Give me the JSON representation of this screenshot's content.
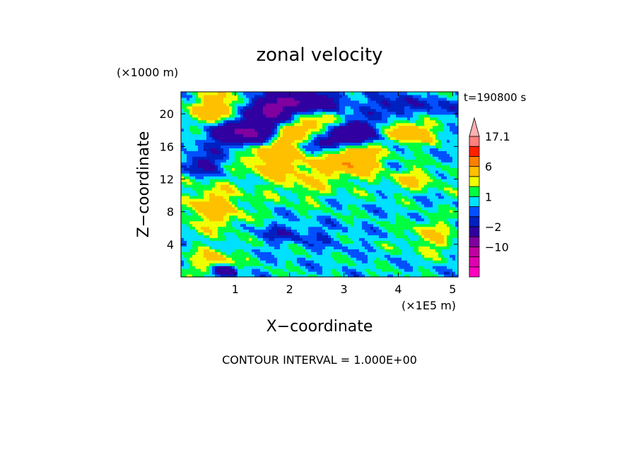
{
  "chart_data": {
    "type": "heatmap",
    "title": "zonal velocity",
    "xlabel": "X−coordinate",
    "ylabel": "Z−coordinate",
    "x_unit": "(×1E5 m)",
    "y_unit": "(×1000 m)",
    "time_label": "t=190800 s",
    "footer": "CONTOUR INTERVAL = 1.000E+00",
    "xlim": [
      0,
      5.1
    ],
    "ylim": [
      0,
      22.7
    ],
    "x_ticks": [
      "1",
      "2",
      "3",
      "4",
      "5"
    ],
    "y_ticks": [
      "4",
      "8",
      "12",
      "16",
      "20"
    ],
    "colorbar": {
      "labels": [
        "17.1",
        "6",
        "1",
        "−2",
        "−10"
      ],
      "levels": [
        -18,
        -14,
        -10,
        -6,
        -2,
        -1,
        0,
        1,
        2,
        3,
        6,
        10,
        14,
        17.1
      ],
      "colors": [
        "#ff00c0",
        "#e000b0",
        "#c000a0",
        "#8000a0",
        "#3000a0",
        "#0020c0",
        "#0050ff",
        "#00e0ff",
        "#00ff40",
        "#f0ff00",
        "#ffc000",
        "#ff8000",
        "#ff2000",
        "#ff8080",
        "#ffb0b0"
      ]
    },
    "background_value": 0.5,
    "features": [
      {
        "x": 0.7,
        "z": 20.5,
        "value": 5,
        "sx": 0.35,
        "sz": 1.5
      },
      {
        "x": 1.6,
        "z": 20.5,
        "value": -6,
        "sx": 0.35,
        "sz": 1.2
      },
      {
        "x": 2.3,
        "z": 21.5,
        "value": -6,
        "sx": 0.45,
        "sz": 1.0
      },
      {
        "x": 1.2,
        "z": 17.8,
        "value": -8,
        "sx": 0.45,
        "sz": 1.2
      },
      {
        "x": 1.9,
        "z": 17.5,
        "value": 4,
        "sx": 0.25,
        "sz": 1.2
      },
      {
        "x": 2.5,
        "z": 18.5,
        "value": 5,
        "sx": 0.3,
        "sz": 1.3
      },
      {
        "x": 3.1,
        "z": 17.8,
        "value": -6,
        "sx": 0.4,
        "sz": 1.0
      },
      {
        "x": 2.7,
        "z": 16.5,
        "value": -4,
        "sx": 0.3,
        "sz": 0.8
      },
      {
        "x": 4.2,
        "z": 17.8,
        "value": 5,
        "sx": 0.3,
        "sz": 1.0
      },
      {
        "x": 3.9,
        "z": 21.0,
        "value": -3,
        "sx": 0.3,
        "sz": 1.0
      },
      {
        "x": 4.8,
        "z": 21.0,
        "value": -2,
        "sx": 0.25,
        "sz": 0.9
      },
      {
        "x": 1.6,
        "z": 15.0,
        "value": 4,
        "sx": 0.35,
        "sz": 1.5
      },
      {
        "x": 3.2,
        "z": 14.5,
        "value": 6,
        "sx": 0.3,
        "sz": 1.3
      },
      {
        "x": 0.4,
        "z": 14.0,
        "value": -3,
        "sx": 0.3,
        "sz": 1.0
      },
      {
        "x": 2.3,
        "z": 12.5,
        "value": 2.5,
        "sx": 0.5,
        "sz": 2.0
      },
      {
        "x": 0.6,
        "z": 8.5,
        "value": 3.5,
        "sx": 0.4,
        "sz": 2.0
      },
      {
        "x": 3.5,
        "z": 10.0,
        "value": 0,
        "sx": 1.0,
        "sz": 2.5
      },
      {
        "x": 4.4,
        "z": 9.0,
        "value": 0,
        "sx": 0.6,
        "sz": 2.5
      },
      {
        "x": 1.8,
        "z": 5.5,
        "value": -1.5,
        "sx": 0.35,
        "sz": 0.8
      },
      {
        "x": 2.5,
        "z": 5.0,
        "value": -1,
        "sx": 0.45,
        "sz": 1.0
      },
      {
        "x": 3.2,
        "z": 4.5,
        "value": 0,
        "sx": 0.8,
        "sz": 1.5
      },
      {
        "x": 1.2,
        "z": 3.5,
        "value": 0,
        "sx": 0.4,
        "sz": 1.2
      },
      {
        "x": 0.6,
        "z": 2.0,
        "value": 3,
        "sx": 0.3,
        "sz": 1.0
      },
      {
        "x": 4.3,
        "z": 12.0,
        "value": 2.5,
        "sx": 0.35,
        "sz": 1.0
      },
      {
        "x": 4.6,
        "z": 5.0,
        "value": 2.5,
        "sx": 0.3,
        "sz": 1.5
      },
      {
        "x": 0.8,
        "z": 0.8,
        "value": -6,
        "sx": 0.15,
        "sz": 0.5
      }
    ]
  }
}
